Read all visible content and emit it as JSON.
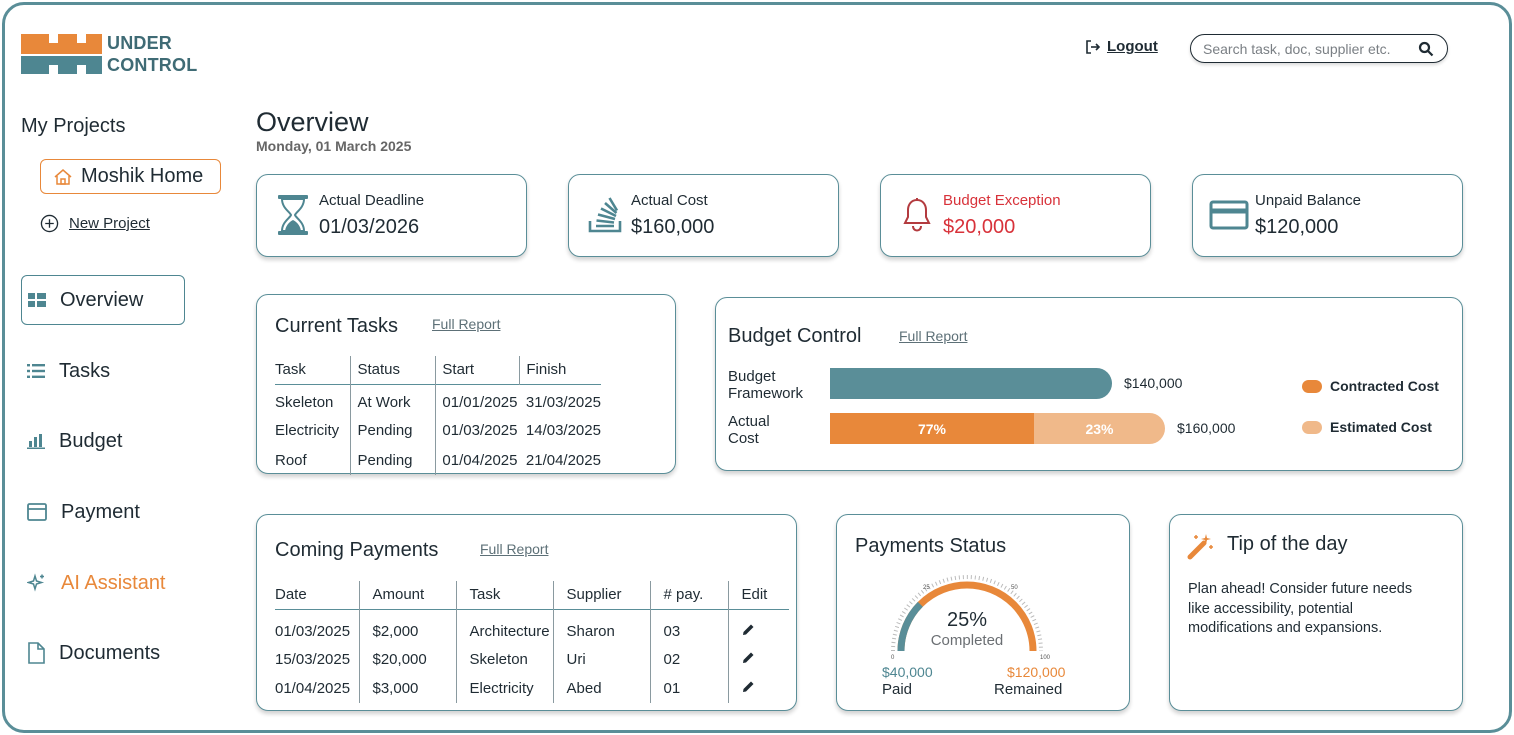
{
  "brand": {
    "line1": "UNDER",
    "line2": "CONTROL"
  },
  "header": {
    "logout_label": "Logout",
    "search_placeholder": "Search task, doc, supplier etc."
  },
  "sidebar": {
    "my_projects": "My Projects",
    "project": "Moshik Home",
    "new_project": "New Project",
    "nav": [
      {
        "label": "Overview",
        "icon": "grid-icon",
        "active": true
      },
      {
        "label": "Tasks",
        "icon": "list-icon"
      },
      {
        "label": "Budget",
        "icon": "bar-chart-icon"
      },
      {
        "label": "Payment",
        "icon": "card-icon"
      },
      {
        "label": "AI Assistant",
        "icon": "sparkle-icon"
      },
      {
        "label": "Documents",
        "icon": "document-icon"
      }
    ]
  },
  "overview": {
    "title": "Overview",
    "date": "Monday, 01 March 2025"
  },
  "kpis": [
    {
      "label": "Actual Deadline",
      "value": "01/03/2026",
      "icon": "hourglass-icon"
    },
    {
      "label": "Actual Cost",
      "value": "$160,000",
      "icon": "stack-icon"
    },
    {
      "label": "Budget Exception",
      "value": "$20,000",
      "icon": "bell-icon",
      "color": "#d8323a"
    },
    {
      "label": "Unpaid Balance",
      "value": "$120,000",
      "icon": "credit-card-icon"
    }
  ],
  "current_tasks": {
    "title": "Current Tasks",
    "full_report": "Full Report",
    "headers": [
      "Task",
      "Status",
      "Start",
      "Finish"
    ],
    "rows": [
      [
        "Skeleton",
        "At Work",
        "01/01/2025",
        "31/03/2025"
      ],
      [
        "Electricity",
        "Pending",
        "01/03/2025",
        "14/03/2025"
      ],
      [
        "Roof",
        "Pending",
        "01/04/2025",
        "21/04/2025"
      ]
    ]
  },
  "budget_control": {
    "title": "Budget Control",
    "full_report": "Full Report",
    "framework_label": "Budget Framework",
    "framework_value": "$140,000",
    "actual_label": "Actual Cost",
    "actual_value": "$160,000",
    "contracted_pct": "77%",
    "estimated_pct": "23%",
    "legend_contracted": "Contracted Cost",
    "legend_estimated": "Estimated Cost",
    "colors": {
      "framework": "#5a8e98",
      "contracted": "#e8883a",
      "estimated": "#f0b98a"
    }
  },
  "coming_payments": {
    "title": "Coming Payments",
    "full_report": "Full Report",
    "headers": [
      "Date",
      "Amount",
      "Task",
      "Supplier",
      "# pay.",
      "Edit"
    ],
    "rows": [
      [
        "01/03/2025",
        "$2,000",
        "Architecture",
        "Sharon",
        "03"
      ],
      [
        "15/03/2025",
        "$20,000",
        "Skeleton",
        "Uri",
        "02"
      ],
      [
        "01/04/2025",
        "$3,000",
        "Electricity",
        "Abed",
        "01"
      ]
    ]
  },
  "payments_status": {
    "title": "Payments Status",
    "percent": "25%",
    "completed_label": "Completed",
    "paid_value": "$40,000",
    "paid_label": "Paid",
    "remained_value": "$120,000",
    "remained_label": "Remained",
    "gauge_ticks": [
      "0",
      "25",
      "50",
      "100"
    ],
    "progress_fraction": 0.25
  },
  "tip": {
    "title": "Tip of the day",
    "text": "Plan ahead! Consider future needs like accessibility, potential modifications and expansions."
  },
  "colors": {
    "teal": "#5a8e98",
    "orange": "#e8883a",
    "alert": "#d8323a"
  }
}
